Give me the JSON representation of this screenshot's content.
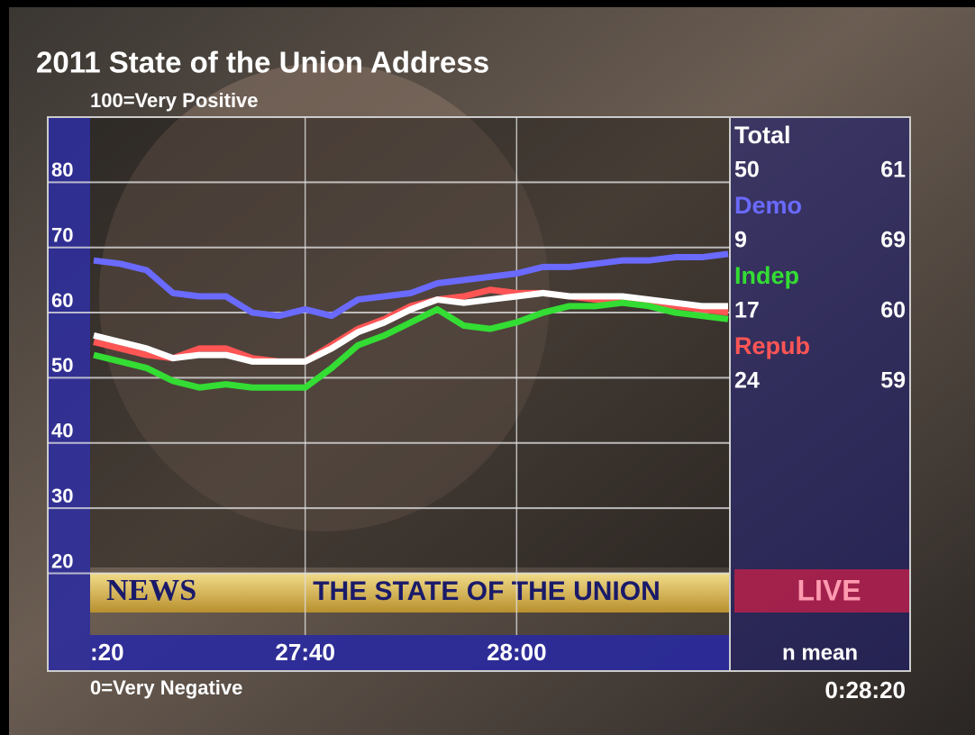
{
  "chart_data": {
    "type": "line",
    "title": "2011 State of the Union Address",
    "scale_top_label": "100=Very Positive",
    "scale_bottom_label": "0=Very Negative",
    "stats_header": "n mean",
    "clock": "0:28:20",
    "xlim": [
      1640,
      1700
    ],
    "xticks": [
      {
        "value": 1640,
        "label": ":20"
      },
      {
        "value": 1660,
        "label": "27:40"
      },
      {
        "value": 1680,
        "label": "28:00"
      }
    ],
    "ylim": [
      5,
      90
    ],
    "yticks": [
      20,
      30,
      40,
      50,
      60,
      70,
      80
    ],
    "grid": true,
    "x": [
      1640,
      1642.5,
      1645,
      1647.5,
      1650,
      1652.5,
      1655,
      1657.5,
      1660,
      1662.5,
      1665,
      1667.5,
      1670,
      1672.5,
      1675,
      1677.5,
      1680,
      1682.5,
      1685,
      1687.5,
      1690,
      1692.5,
      1695,
      1697.5,
      1700
    ],
    "series": [
      {
        "name": "Total",
        "color": "#ffffff",
        "n": 50,
        "mean": 61,
        "values": [
          56.5,
          55.5,
          54.5,
          53,
          53.5,
          53.5,
          52.5,
          52.5,
          52.5,
          54.5,
          57,
          58.5,
          60.5,
          62,
          61.5,
          62,
          62.5,
          63,
          62.5,
          62.5,
          62.5,
          62,
          61.5,
          61,
          61
        ]
      },
      {
        "name": "Demo",
        "color": "#6a6aff",
        "n": 9,
        "mean": 69,
        "values": [
          68,
          67.5,
          66.5,
          63,
          62.5,
          62.5,
          60,
          59.5,
          60.5,
          59.5,
          62,
          62.5,
          63,
          64.5,
          65,
          65.5,
          66,
          67,
          67,
          67.5,
          68,
          68,
          68.5,
          68.5,
          69
        ]
      },
      {
        "name": "Indep",
        "color": "#33dd33",
        "n": 17,
        "mean": 60,
        "values": [
          53.5,
          52.5,
          51.5,
          49.5,
          48.5,
          49,
          48.5,
          48.5,
          48.5,
          51.5,
          55,
          56.5,
          58.5,
          60.5,
          58,
          57.5,
          58.5,
          60,
          61,
          61,
          61.5,
          61,
          60,
          59.5,
          59
        ]
      },
      {
        "name": "Repub",
        "color": "#ff5555",
        "n": 24,
        "mean": 59,
        "values": [
          55.5,
          54.5,
          53.5,
          53,
          54.5,
          54.5,
          53,
          52.5,
          52.5,
          55,
          57.5,
          59,
          61,
          62,
          62.5,
          63.5,
          63,
          63,
          62.5,
          62,
          62,
          61.5,
          61,
          60.5,
          60
        ]
      }
    ]
  },
  "banner": {
    "network": "NEWS",
    "show": "THE STATE OF THE UNION",
    "live": "LIVE"
  }
}
